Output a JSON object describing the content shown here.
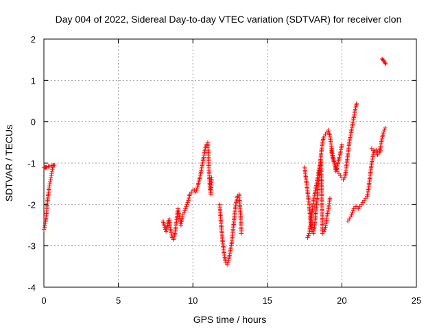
{
  "chart_data": {
    "type": "scatter",
    "title": "Day 004 of 2022, Sidereal Day-to-day VTEC variation (SDTVAR) for receiver clon",
    "xlabel": "GPS time / hours",
    "ylabel": "SDTVAR / TECUs",
    "xlim": [
      0,
      25
    ],
    "ylim": [
      -4,
      2
    ],
    "x_ticks": [
      0,
      5,
      10,
      15,
      20,
      25
    ],
    "y_ticks": [
      -4,
      -3,
      -2,
      -1,
      0,
      1,
      2
    ],
    "x_tick_labels": [
      "0",
      "5",
      "10",
      "15",
      "20",
      "25"
    ],
    "y_tick_labels": [
      "-4",
      "-3",
      "-2",
      "-1",
      "0",
      "1",
      "2"
    ],
    "grid": true,
    "marker": "+",
    "color": "#ff0000",
    "series": [
      {
        "x": [
          0.0,
          0.05,
          0.1,
          0.15,
          0.2,
          0.25,
          0.3,
          0.35,
          0.4,
          0.45,
          0.5,
          0.55,
          0.6,
          0.65,
          0.7,
          0.0,
          0.05,
          0.1,
          0.15
        ],
        "y": [
          -2.6,
          -2.55,
          -2.45,
          -2.3,
          -2.1,
          -1.9,
          -1.75,
          -1.6,
          -1.5,
          -1.4,
          -1.3,
          -1.2,
          -1.1,
          -1.05,
          -1.05,
          -1.1,
          -1.1,
          -1.12,
          -1.1
        ]
      },
      {
        "x": [
          8.0,
          8.1,
          8.2,
          8.3,
          8.4,
          8.5,
          8.6,
          8.7,
          8.8,
          8.9,
          9.0,
          9.1,
          9.2,
          9.3,
          9.4,
          9.5,
          9.6,
          9.7,
          9.8,
          9.9,
          10.0,
          10.1,
          10.2,
          10.3,
          10.4,
          10.5,
          10.6,
          10.7,
          10.8,
          10.9,
          11.0,
          11.05,
          11.1,
          11.15,
          11.2,
          11.25
        ],
        "y": [
          -2.4,
          -2.55,
          -2.65,
          -2.5,
          -2.35,
          -2.6,
          -2.8,
          -2.85,
          -2.7,
          -2.4,
          -2.1,
          -2.3,
          -2.5,
          -2.25,
          -2.2,
          -2.1,
          -2.0,
          -1.9,
          -1.75,
          -1.7,
          -1.65,
          -1.65,
          -1.7,
          -1.6,
          -1.45,
          -1.3,
          -1.1,
          -0.9,
          -0.7,
          -0.55,
          -0.5,
          -0.9,
          -1.3,
          -1.6,
          -1.75,
          -1.35
        ]
      },
      {
        "x": [
          11.8,
          11.9,
          12.0,
          12.1,
          12.2,
          12.3,
          12.4,
          12.5,
          12.6,
          12.7,
          12.8,
          12.9,
          13.0,
          13.1,
          13.2,
          13.25
        ],
        "y": [
          -2.0,
          -2.5,
          -2.9,
          -3.2,
          -3.4,
          -3.45,
          -3.35,
          -3.15,
          -2.95,
          -2.6,
          -2.25,
          -1.95,
          -1.8,
          -1.75,
          -2.25,
          -2.7
        ]
      },
      {
        "x": [
          17.5,
          17.6,
          17.7,
          17.8,
          17.9,
          18.0,
          18.1,
          18.2,
          18.3,
          18.4,
          18.5,
          18.6,
          18.7,
          18.8,
          18.9,
          19.0,
          19.1,
          19.2,
          19.3,
          19.4,
          19.5,
          19.6,
          19.7,
          19.8,
          19.9,
          20.0,
          20.1,
          20.2,
          20.3,
          20.4,
          20.5,
          20.6,
          20.7,
          20.8,
          20.9,
          21.0
        ],
        "y": [
          -1.1,
          -1.4,
          -1.7,
          -2.0,
          -2.4,
          -2.65,
          -2.7,
          -2.4,
          -2.0,
          -1.6,
          -1.2,
          -0.8,
          -0.5,
          -0.35,
          -0.3,
          -0.25,
          -0.2,
          -0.35,
          -0.6,
          -0.85,
          -1.0,
          -1.1,
          -1.2,
          -1.25,
          -1.3,
          -1.35,
          -1.4,
          -1.35,
          -1.1,
          -0.8,
          -0.5,
          -0.3,
          -0.1,
          0.1,
          0.3,
          0.45
        ]
      },
      {
        "x": [
          17.7,
          17.8,
          17.9,
          18.0,
          18.1,
          18.2,
          18.3,
          18.4,
          18.5,
          18.6,
          18.7,
          18.8,
          18.9,
          19.0,
          19.1,
          19.2
        ],
        "y": [
          -2.8,
          -2.7,
          -2.5,
          -2.2,
          -1.9,
          -1.7,
          -1.5,
          -1.3,
          -1.1,
          -0.95,
          -2.7,
          -2.65,
          -2.55,
          -2.3,
          -2.1,
          -1.85
        ]
      },
      {
        "x": [
          19.3,
          19.4,
          19.5,
          19.6,
          19.7,
          19.8,
          19.9,
          20.0
        ],
        "y": [
          -0.7,
          -0.9,
          -1.0,
          -1.2,
          -1.05,
          -0.9,
          -0.75,
          -0.55
        ]
      },
      {
        "x": [
          20.4,
          20.5,
          20.6,
          20.7,
          20.8,
          20.9,
          21.0,
          21.1,
          21.2,
          21.3,
          21.4,
          21.5,
          21.6,
          21.7,
          21.8,
          21.9,
          22.0,
          22.1,
          22.2,
          22.3,
          22.4,
          22.5,
          22.6,
          22.7,
          22.8,
          22.9
        ],
        "y": [
          -2.4,
          -2.35,
          -2.3,
          -2.2,
          -2.1,
          -2.05,
          -2.05,
          -2.1,
          -2.05,
          -2.0,
          -1.95,
          -1.9,
          -1.85,
          -1.8,
          -1.6,
          -1.3,
          -1.0,
          -0.8,
          -0.7,
          -0.75,
          -0.8,
          -0.75,
          -0.6,
          -0.4,
          -0.25,
          -0.15
        ]
      },
      {
        "x": [
          22.0,
          22.1,
          22.2,
          22.3,
          22.4,
          22.5,
          22.6
        ],
        "y": [
          -0.65,
          -0.7,
          -0.7,
          -0.68,
          -0.72,
          -0.75,
          -0.7
        ]
      },
      {
        "x": [
          22.7,
          22.75,
          22.8,
          22.85,
          22.9,
          22.95
        ],
        "y": [
          1.52,
          1.5,
          1.48,
          1.45,
          1.42,
          1.4
        ]
      }
    ]
  }
}
